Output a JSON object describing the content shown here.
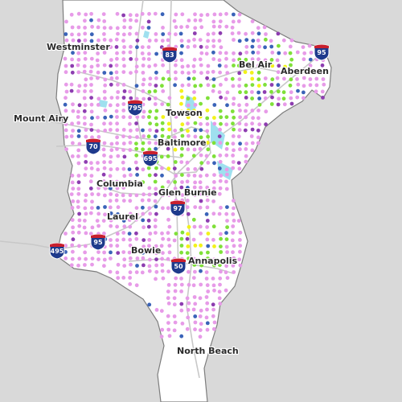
{
  "colors": {
    "land": "#ffffff",
    "neighbor_land": "#d9d9d9",
    "border": "#7d7d7d",
    "road": "#c8c8c8",
    "water": "#9fe0ef",
    "dot_pink": "#e79be8",
    "dot_purple": "#8d3db0",
    "dot_blue": "#3a63b8",
    "dot_green": "#7fe039",
    "dot_yellow": "#f2f21a",
    "shield_blue": "#1e3a8c",
    "shield_red": "#c8202e"
  },
  "cities": [
    {
      "id": "westminster",
      "name": "Westminster"
    },
    {
      "id": "bel-air",
      "name": "Bel Air"
    },
    {
      "id": "aberdeen",
      "name": "Aberdeen"
    },
    {
      "id": "towson",
      "name": "Towson"
    },
    {
      "id": "mount-airy",
      "name": "Mount Airy"
    },
    {
      "id": "baltimore",
      "name": "Baltimore"
    },
    {
      "id": "columbia",
      "name": "Columbia"
    },
    {
      "id": "glen-burnie",
      "name": "Glen Burnie"
    },
    {
      "id": "laurel",
      "name": "Laurel"
    },
    {
      "id": "bowie",
      "name": "Bowie"
    },
    {
      "id": "annapolis",
      "name": "Annapolis"
    },
    {
      "id": "north-beach",
      "name": "North Beach"
    }
  ],
  "interstates": [
    "83",
    "95",
    "795",
    "70",
    "695",
    "97",
    "95",
    "495",
    "50"
  ]
}
